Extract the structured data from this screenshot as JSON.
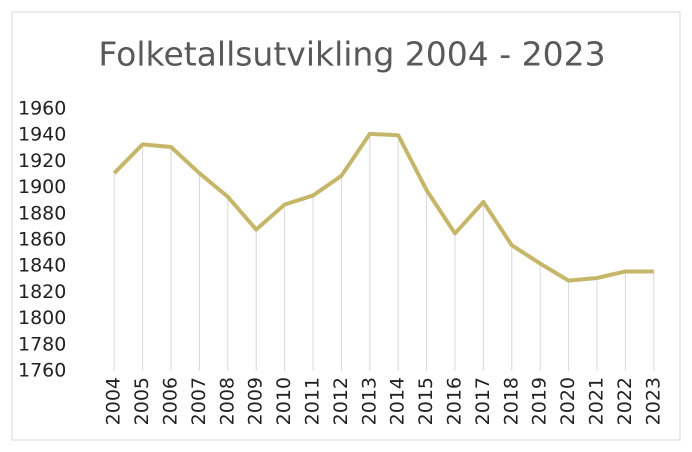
{
  "chart_data": {
    "type": "line",
    "title": "Folketallsutvikling 2004 - 2023",
    "categories": [
      "2004",
      "2005",
      "2006",
      "2007",
      "2008",
      "2009",
      "2010",
      "2011",
      "2012",
      "2013",
      "2014",
      "2015",
      "2016",
      "2017",
      "2018",
      "2019",
      "2020",
      "2021",
      "2022",
      "2023"
    ],
    "values": [
      1911,
      1933,
      1931,
      1911,
      1893,
      1868,
      1887,
      1894,
      1909,
      1941,
      1940,
      1898,
      1865,
      1889,
      1856,
      1842,
      1829,
      1831,
      1836,
      1836
    ],
    "color": "#c6b66a",
    "ylim": [
      1760,
      1960
    ],
    "yticks": [
      1760,
      1780,
      1800,
      1820,
      1840,
      1860,
      1880,
      1900,
      1920,
      1940,
      1960
    ],
    "drop_lines": true
  }
}
